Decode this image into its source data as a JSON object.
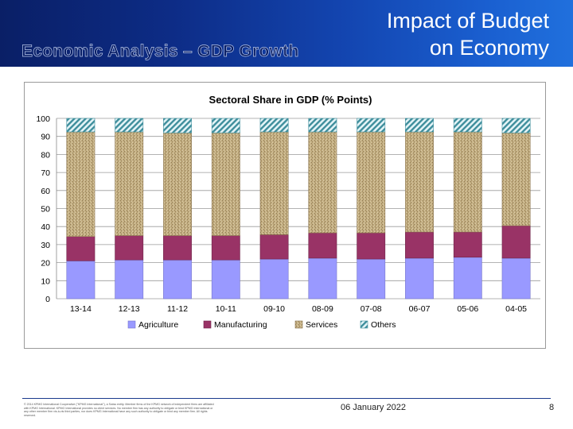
{
  "header": {
    "subtitle": "Economic Analysis – GDP Growth",
    "title_line1": "Impact of Budget",
    "title_line2": "on Economy"
  },
  "colors": {
    "agriculture": "#9999ff",
    "manufacturing": "#993366",
    "services": "#c2ad80",
    "others": "#9bd3dd"
  },
  "chart_data": {
    "type": "bar",
    "stacked": true,
    "title": "Sectoral Share in GDP (% Points)",
    "xlabel": "",
    "ylabel": "",
    "ylim": [
      0,
      100
    ],
    "yticks": [
      0,
      10,
      20,
      30,
      40,
      50,
      60,
      70,
      80,
      90,
      100
    ],
    "categories": [
      "13-14",
      "12-13",
      "11-12",
      "10-11",
      "09-10",
      "08-09",
      "07-08",
      "06-07",
      "05-06",
      "04-05"
    ],
    "series": [
      {
        "name": "Agriculture",
        "values": [
          21.0,
          21.5,
          21.5,
          21.5,
          22.0,
          22.5,
          22.0,
          22.5,
          23.0,
          22.5
        ]
      },
      {
        "name": "Manufacturing",
        "values": [
          13.5,
          13.5,
          13.5,
          13.5,
          13.5,
          14.0,
          14.5,
          14.5,
          14.0,
          18.0
        ]
      },
      {
        "name": "Services",
        "values": [
          58.0,
          57.5,
          57.0,
          57.0,
          57.0,
          56.0,
          56.0,
          55.5,
          55.5,
          51.5
        ]
      },
      {
        "name": "Others",
        "values": [
          7.5,
          7.5,
          8.0,
          8.0,
          7.5,
          7.5,
          7.5,
          7.5,
          7.5,
          8.0
        ]
      }
    ],
    "legend_position": "bottom",
    "grid": true
  },
  "footer": {
    "disclaimer": "© 2014 KPMG International Cooperative (\"KPMG International\"), a Swiss entity. Member firms of the KPMG network of independent firms are affiliated with KPMG International. KPMG International provides no client services. No member firm has any authority to obligate or bind KPMG International or any other member firm vis-à-vis third parties, nor does KPMG International have any such authority to obligate or bind any member firm. All rights reserved.",
    "date": "06 January 2022",
    "page_number": "8"
  }
}
